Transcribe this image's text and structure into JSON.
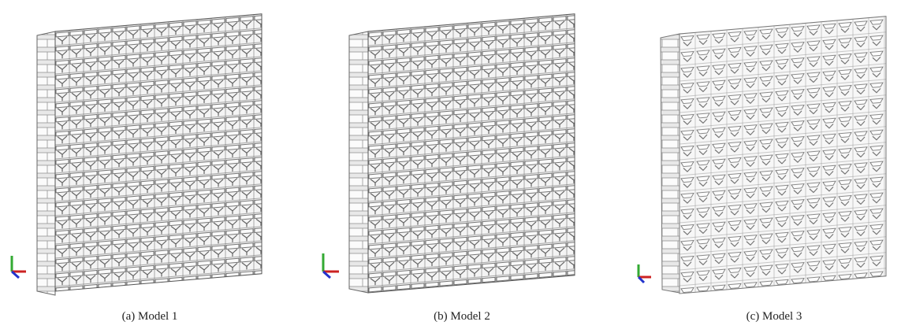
{
  "figure": {
    "panels": [
      {
        "caption": "(a) Model 1"
      },
      {
        "caption": "(b) Model 2"
      },
      {
        "caption": "(c) Model 3"
      }
    ]
  }
}
